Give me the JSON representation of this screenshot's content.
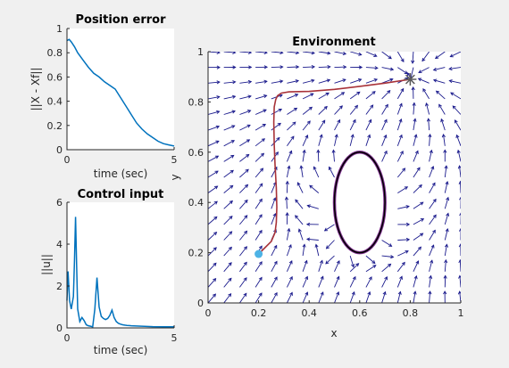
{
  "chart_data": [
    {
      "type": "line",
      "title": "Position error",
      "xlabel": "time (sec)",
      "ylabel": "||X - Xf||",
      "xlim": [
        0,
        5
      ],
      "ylim": [
        0,
        1
      ],
      "xticks": [
        "0",
        "5"
      ],
      "yticks": [
        "0",
        "0.2",
        "0.4",
        "0.6",
        "0.8",
        "1"
      ],
      "color": "#0072bd",
      "series": [
        {
          "x": [
            0,
            0.1,
            0.2,
            0.35,
            0.5,
            0.75,
            1.0,
            1.25,
            1.5,
            1.75,
            2.0,
            2.25,
            2.5,
            2.75,
            3.0,
            3.25,
            3.5,
            3.75,
            4.0,
            4.25,
            4.5,
            4.75,
            5.0
          ],
          "y": [
            0.9,
            0.91,
            0.89,
            0.85,
            0.8,
            0.74,
            0.68,
            0.63,
            0.6,
            0.56,
            0.53,
            0.5,
            0.43,
            0.36,
            0.29,
            0.22,
            0.17,
            0.13,
            0.1,
            0.07,
            0.05,
            0.04,
            0.03
          ]
        }
      ]
    },
    {
      "type": "line",
      "title": "Control input",
      "xlabel": "time (sec)",
      "ylabel": "||u||",
      "xlim": [
        0,
        5
      ],
      "ylim": [
        0,
        6
      ],
      "xticks": [
        "0",
        "5"
      ],
      "yticks": [
        "0",
        "2",
        "4",
        "6"
      ],
      "color": "#0072bd",
      "series": [
        {
          "x": [
            0,
            0.05,
            0.12,
            0.2,
            0.3,
            0.35,
            0.4,
            0.45,
            0.5,
            0.6,
            0.7,
            0.8,
            0.9,
            1.0,
            1.1,
            1.2,
            1.3,
            1.4,
            1.5,
            1.6,
            1.7,
            1.8,
            1.9,
            2.0,
            2.1,
            2.2,
            2.3,
            2.4,
            2.5,
            2.6,
            2.7,
            2.8,
            2.9,
            3.0,
            3.5,
            4.0,
            4.5,
            5.0
          ],
          "y": [
            1.3,
            2.7,
            1.3,
            0.9,
            1.5,
            3.2,
            5.3,
            3.0,
            0.9,
            0.3,
            0.5,
            0.35,
            0.15,
            0.1,
            0.08,
            0.05,
            0.9,
            2.4,
            1.0,
            0.55,
            0.45,
            0.4,
            0.45,
            0.6,
            0.85,
            0.5,
            0.3,
            0.22,
            0.18,
            0.15,
            0.13,
            0.12,
            0.11,
            0.1,
            0.08,
            0.06,
            0.05,
            0.05
          ]
        }
      ]
    },
    {
      "type": "quiver",
      "title": "Environment",
      "xlabel": "x",
      "ylabel": "y",
      "xlim": [
        0,
        1
      ],
      "ylim": [
        0,
        1
      ],
      "xticks": [
        "0",
        "0.2",
        "0.4",
        "0.6",
        "0.8",
        "1"
      ],
      "yticks": [
        "0",
        "0.2",
        "0.4",
        "0.6",
        "0.8",
        "1"
      ],
      "goal": [
        0.8,
        0.89
      ],
      "start": [
        0.2,
        0.195
      ],
      "obstacle": {
        "cx": 0.6,
        "cy": 0.4,
        "rx": 0.1,
        "ry": 0.2
      },
      "trajectory": {
        "x": [
          0.2,
          0.225,
          0.25,
          0.265,
          0.27,
          0.272,
          0.27,
          0.265,
          0.262,
          0.26,
          0.262,
          0.268,
          0.275,
          0.29,
          0.32,
          0.4,
          0.5,
          0.6,
          0.7,
          0.8
        ],
        "y": [
          0.195,
          0.22,
          0.245,
          0.28,
          0.32,
          0.38,
          0.46,
          0.55,
          0.63,
          0.72,
          0.78,
          0.81,
          0.825,
          0.835,
          0.84,
          0.842,
          0.85,
          0.862,
          0.875,
          0.89
        ]
      },
      "colors": {
        "arrow": "#1a1a8c",
        "trajectory": "#a83238",
        "start": "#4db3e6",
        "goal": "#5a5a5a",
        "obstacle": "#000000",
        "obstacle_halo": "#7e2f8e"
      }
    }
  ]
}
